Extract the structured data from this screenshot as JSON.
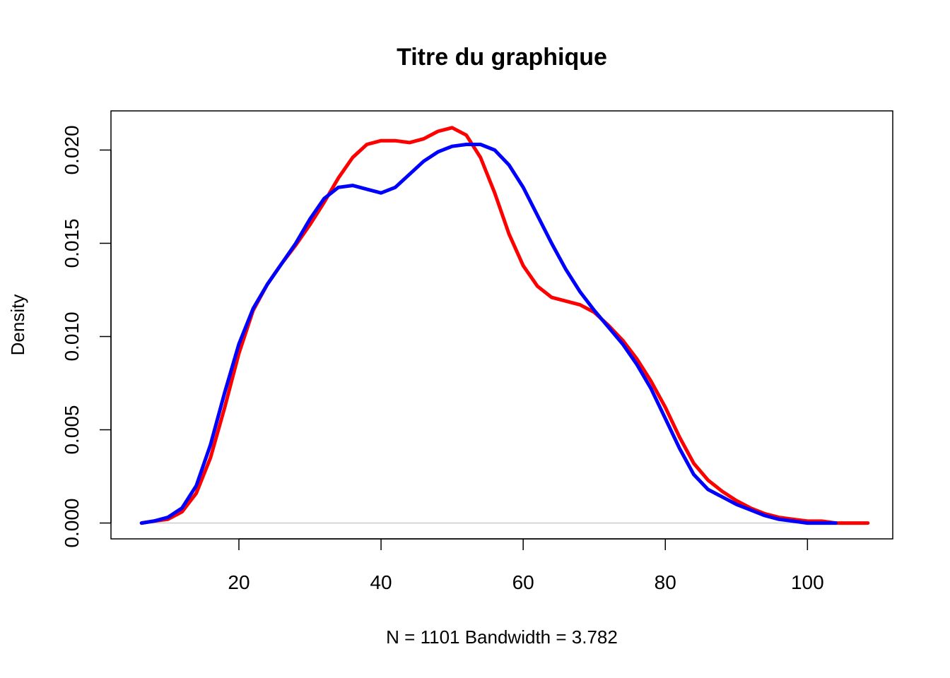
{
  "chart_data": {
    "type": "line",
    "title": "Titre du graphique",
    "xlabel": "N = 1101   Bandwidth = 3.782",
    "ylabel": "Density",
    "xlim": [
      2,
      112
    ],
    "ylim": [
      -0.00085,
      0.0221
    ],
    "x_ticks": [
      {
        "value": 20,
        "label": "20"
      },
      {
        "value": 40,
        "label": "40"
      },
      {
        "value": 60,
        "label": "60"
      },
      {
        "value": 80,
        "label": "80"
      },
      {
        "value": 100,
        "label": "100"
      }
    ],
    "y_ticks": [
      {
        "value": 0.0,
        "label": "0.000"
      },
      {
        "value": 0.005,
        "label": "0.005"
      },
      {
        "value": 0.01,
        "label": "0.010"
      },
      {
        "value": 0.015,
        "label": "0.015"
      },
      {
        "value": 0.02,
        "label": "0.020"
      }
    ],
    "baseline": {
      "value": 0,
      "from": 6.3,
      "to": 108.5,
      "color": "#bebebe"
    },
    "grid": false,
    "legend": "none",
    "series": [
      {
        "color": "#ff0000",
        "x": [
          6.3,
          8,
          10,
          12,
          14,
          16,
          18,
          20,
          22,
          24,
          26,
          28,
          30,
          32,
          34,
          36,
          38,
          40,
          42,
          44,
          46,
          48,
          50,
          52,
          54,
          56,
          58,
          60,
          62,
          64,
          66,
          68,
          70,
          72,
          74,
          76,
          78,
          80,
          82,
          84,
          86,
          88,
          90,
          92,
          94,
          96,
          98,
          100,
          102,
          104,
          106,
          108.5
        ],
        "y": [
          0.0,
          0.0001,
          0.0002,
          0.0006,
          0.0016,
          0.0035,
          0.0062,
          0.0091,
          0.0114,
          0.0128,
          0.0139,
          0.0149,
          0.016,
          0.0172,
          0.0185,
          0.0196,
          0.0203,
          0.0205,
          0.0205,
          0.0204,
          0.0206,
          0.021,
          0.0212,
          0.0208,
          0.0196,
          0.0177,
          0.0155,
          0.0138,
          0.0127,
          0.0121,
          0.0119,
          0.0117,
          0.0113,
          0.0106,
          0.0098,
          0.0088,
          0.0076,
          0.0062,
          0.0046,
          0.0032,
          0.0023,
          0.0017,
          0.0012,
          0.0008,
          0.0005,
          0.0003,
          0.0002,
          0.0001,
          0.0001,
          0.0,
          0.0,
          0.0
        ]
      },
      {
        "color": "#0000ff",
        "x": [
          6.3,
          8,
          10,
          12,
          14,
          16,
          18,
          20,
          22,
          24,
          26,
          28,
          30,
          32,
          34,
          36,
          38,
          40,
          42,
          44,
          46,
          48,
          50,
          52,
          54,
          56,
          58,
          60,
          62,
          64,
          66,
          68,
          70,
          72,
          74,
          76,
          78,
          80,
          82,
          84,
          86,
          88,
          90,
          92,
          94,
          96,
          98,
          100,
          102,
          104
        ],
        "y": [
          0.0,
          0.0001,
          0.0003,
          0.0008,
          0.002,
          0.0042,
          0.007,
          0.0096,
          0.0115,
          0.0128,
          0.0139,
          0.015,
          0.0163,
          0.0174,
          0.018,
          0.0181,
          0.0179,
          0.0177,
          0.018,
          0.0187,
          0.0194,
          0.0199,
          0.0202,
          0.0203,
          0.0203,
          0.02,
          0.0192,
          0.018,
          0.0165,
          0.015,
          0.0136,
          0.0124,
          0.0114,
          0.0105,
          0.0096,
          0.0085,
          0.0072,
          0.0056,
          0.004,
          0.0026,
          0.0018,
          0.0014,
          0.001,
          0.0007,
          0.0004,
          0.0002,
          0.0001,
          0.0,
          0.0,
          0.0
        ]
      }
    ]
  }
}
